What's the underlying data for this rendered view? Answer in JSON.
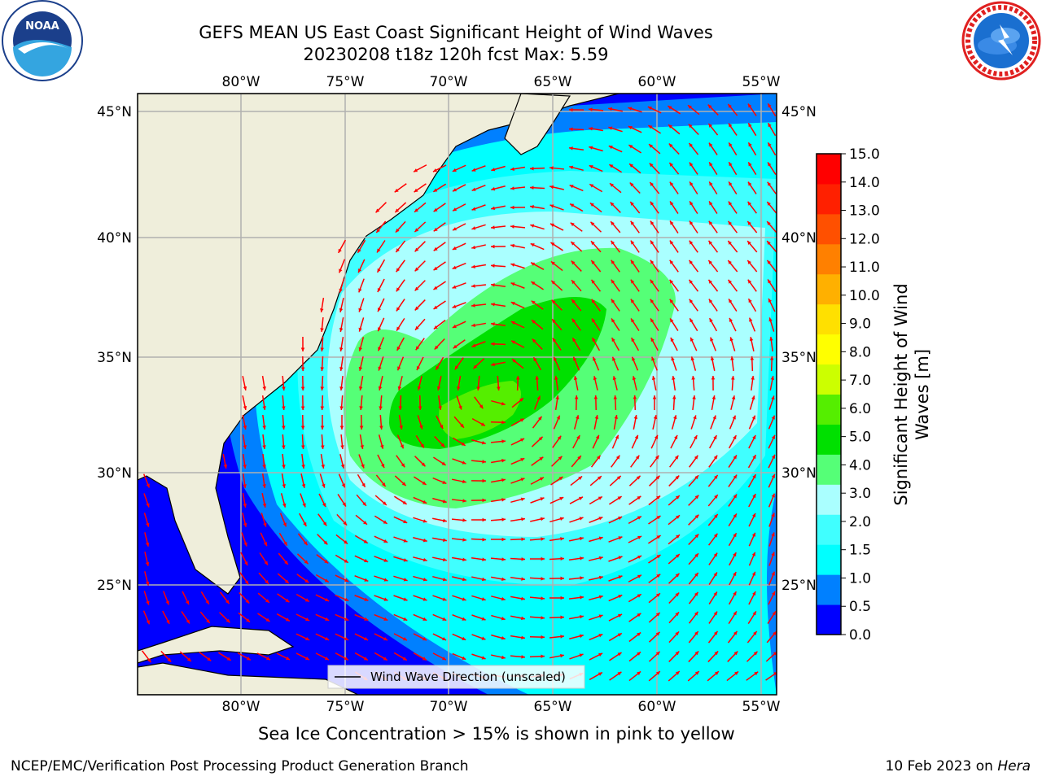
{
  "header": {
    "title_line1": "GEFS MEAN US East Coast Significant Height of Wind Waves",
    "title_line2": "20230208 t18z 120h fcst   Max: 5.59"
  },
  "logos": {
    "left": {
      "name": "NOAA",
      "ring_text": "NATIONAL OCEANIC AND ATMOSPHERIC ADMINISTRATION",
      "bottom_text": "U.S. DEPARTMENT OF COMMERCE"
    },
    "right": {
      "ring_text": "NATIONAL WEATHER SERVICE"
    }
  },
  "map": {
    "lon_labels": [
      "80°W",
      "75°W",
      "70°W",
      "65°W",
      "60°W",
      "55°W"
    ],
    "lat_labels": [
      "45°N",
      "40°N",
      "35°N",
      "30°N",
      "25°N"
    ],
    "legend_label": "Wind Wave Direction (unscaled)",
    "colors": {
      "land": "#efeedb",
      "grid": "#b0b0b0",
      "arrow": "#ff0000"
    }
  },
  "colorbar": {
    "label": "Significant Height of Wind Waves [m]",
    "ticks": [
      "0.0",
      "0.5",
      "1.0",
      "1.5",
      "2.0",
      "3.0",
      "4.0",
      "5.0",
      "6.0",
      "7.0",
      "8.0",
      "9.0",
      "10.0",
      "11.0",
      "12.0",
      "13.0",
      "14.0",
      "15.0"
    ],
    "colors": [
      "#0000ff",
      "#0080ff",
      "#00ffff",
      "#40ffff",
      "#aaffff",
      "#55ff77",
      "#00e000",
      "#55ee00",
      "#ccff00",
      "#ffff00",
      "#ffe000",
      "#ffb000",
      "#ff8000",
      "#ff5000",
      "#ff2000",
      "#ff0000"
    ]
  },
  "notes": {
    "sea_ice": "Sea Ice Concentration > 15% is shown in pink to yellow",
    "credit_left": "NCEP/EMC/Verification Post Processing Product Generation Branch",
    "credit_date": "10 Feb 2023 on ",
    "credit_machine": "Hera"
  }
}
